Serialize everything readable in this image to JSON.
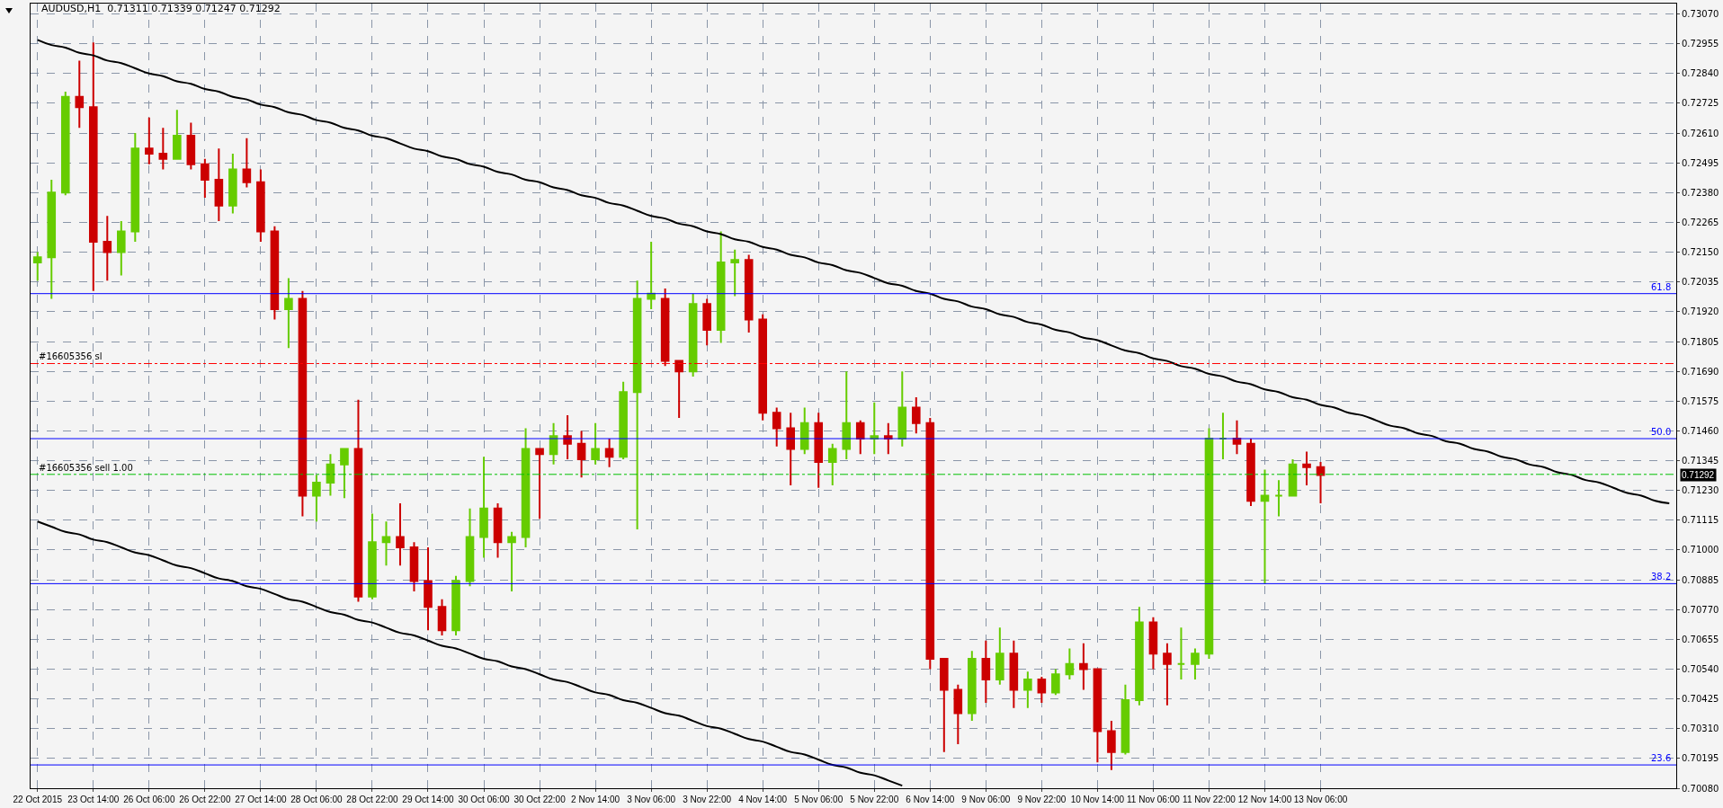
{
  "chart_data": {
    "type": "candlestick",
    "title": "AUDUSD,H1  0.71311 0.71339 0.71247 0.71292",
    "categories": [
      "22 Oct 2015",
      null,
      null,
      null,
      "23 Oct 14:00",
      null,
      null,
      null,
      "26 Oct 06:00",
      null,
      null,
      null,
      "26 Oct 22:00",
      null,
      null,
      null,
      "27 Oct 14:00",
      null,
      null,
      null,
      "28 Oct 06:00",
      null,
      null,
      null,
      "28 Oct 22:00",
      null,
      null,
      null,
      "29 Oct 14:00",
      null,
      null,
      null,
      "30 Oct 06:00",
      null,
      null,
      null,
      "30 Oct 22:00",
      null,
      null,
      null,
      "2 Nov 14:00",
      null,
      null,
      null,
      "3 Nov 06:00",
      null,
      null,
      null,
      "3 Nov 22:00",
      null,
      null,
      null,
      "4 Nov 14:00",
      null,
      null,
      null,
      "5 Nov 06:00",
      null,
      null,
      null,
      "5 Nov 22:00",
      null,
      null,
      null,
      "6 Nov 14:00",
      null,
      null,
      null,
      "9 Nov 06:00",
      null,
      null,
      null,
      "9 Nov 22:00",
      null,
      null,
      null,
      "10 Nov 14:00",
      null,
      null,
      null,
      "11 Nov 06:00",
      null,
      null,
      null,
      "11 Nov 22:00",
      null,
      null,
      null,
      "12 Nov 14:00",
      null,
      null,
      null,
      "13 Nov 06:00",
      null,
      null,
      null,
      null,
      null,
      null,
      null,
      null,
      null,
      null,
      null,
      null,
      null,
      null,
      null,
      null,
      null,
      null,
      null,
      null,
      null,
      null,
      null,
      null,
      null
    ],
    "ohlc": [
      [
        0.7211,
        0.7215,
        0.7204,
        0.7213
      ],
      [
        0.7213,
        0.7243,
        0.7197,
        0.7238
      ],
      [
        0.7238,
        0.7277,
        0.7237,
        0.7275
      ],
      [
        0.7275,
        0.7289,
        0.7263,
        0.7271
      ],
      [
        0.7271,
        0.7296,
        0.72,
        0.7219
      ],
      [
        0.7219,
        0.7229,
        0.7204,
        0.7215
      ],
      [
        0.7215,
        0.7227,
        0.7206,
        0.7223
      ],
      [
        0.7223,
        0.7261,
        0.7219,
        0.7255
      ],
      [
        0.7255,
        0.7267,
        0.7249,
        0.7253
      ],
      [
        0.7253,
        0.7263,
        0.7247,
        0.7251
      ],
      [
        0.7251,
        0.727,
        0.7251,
        0.726
      ],
      [
        0.726,
        0.7265,
        0.7247,
        0.7249
      ],
      [
        0.7249,
        0.7251,
        0.7236,
        0.7243
      ],
      [
        0.7243,
        0.7255,
        0.7227,
        0.7233
      ],
      [
        0.7233,
        0.7253,
        0.723,
        0.7247
      ],
      [
        0.7247,
        0.7259,
        0.724,
        0.7242
      ],
      [
        0.7242,
        0.7247,
        0.7219,
        0.7223
      ],
      [
        0.7223,
        0.7225,
        0.7189,
        0.7193
      ],
      [
        0.7193,
        0.7205,
        0.7178,
        0.7197
      ],
      [
        0.7197,
        0.72,
        0.7113,
        0.7121
      ],
      [
        0.7121,
        0.7129,
        0.7111,
        0.7126
      ],
      [
        0.7126,
        0.7137,
        0.7121,
        0.7133
      ],
      [
        0.7133,
        0.7139,
        0.712,
        0.7139
      ],
      [
        0.7139,
        0.7158,
        0.708,
        0.7082
      ],
      [
        0.7082,
        0.7114,
        0.7081,
        0.7103
      ],
      [
        0.7103,
        0.7111,
        0.7094,
        0.7105
      ],
      [
        0.7105,
        0.7118,
        0.7094,
        0.7101
      ],
      [
        0.7101,
        0.7103,
        0.7084,
        0.7088
      ],
      [
        0.7088,
        0.7101,
        0.7069,
        0.7078
      ],
      [
        0.7078,
        0.7081,
        0.7067,
        0.7069
      ],
      [
        0.7069,
        0.709,
        0.7067,
        0.7088
      ],
      [
        0.7088,
        0.7116,
        0.7086,
        0.7105
      ],
      [
        0.7105,
        0.7136,
        0.7097,
        0.7116
      ],
      [
        0.7116,
        0.7118,
        0.7097,
        0.7103
      ],
      [
        0.7103,
        0.7107,
        0.7084,
        0.7105
      ],
      [
        0.7105,
        0.7147,
        0.7101,
        0.7139
      ],
      [
        0.7139,
        0.7139,
        0.7112,
        0.7137
      ],
      [
        0.7137,
        0.7149,
        0.7133,
        0.7144
      ],
      [
        0.7144,
        0.7152,
        0.7135,
        0.7141
      ],
      [
        0.7141,
        0.7146,
        0.7128,
        0.7135
      ],
      [
        0.7135,
        0.7149,
        0.7133,
        0.7139
      ],
      [
        0.7139,
        0.7143,
        0.7132,
        0.7136
      ],
      [
        0.7136,
        0.7165,
        0.7135,
        0.7161
      ],
      [
        0.7161,
        0.7204,
        0.7108,
        0.7197
      ],
      [
        0.7197,
        0.7219,
        0.7193,
        0.7199
      ],
      [
        0.7197,
        0.7201,
        0.7171,
        0.7173
      ],
      [
        0.7173,
        0.7173,
        0.7151,
        0.7169
      ],
      [
        0.7169,
        0.7199,
        0.7167,
        0.7195
      ],
      [
        0.7195,
        0.7197,
        0.7179,
        0.7185
      ],
      [
        0.7185,
        0.7223,
        0.718,
        0.7211
      ],
      [
        0.7211,
        0.7216,
        0.7198,
        0.7212
      ],
      [
        0.7212,
        0.7214,
        0.7184,
        0.7189
      ],
      [
        0.7189,
        0.7191,
        0.715,
        0.7153
      ],
      [
        0.7153,
        0.7155,
        0.714,
        0.7147
      ],
      [
        0.7147,
        0.7153,
        0.7125,
        0.7139
      ],
      [
        0.7139,
        0.7155,
        0.7137,
        0.7149
      ],
      [
        0.7149,
        0.7153,
        0.7124,
        0.7134
      ],
      [
        0.7134,
        0.7141,
        0.7125,
        0.7139
      ],
      [
        0.7139,
        0.7169,
        0.7135,
        0.7149
      ],
      [
        0.7149,
        0.715,
        0.7137,
        0.7143
      ],
      [
        0.7143,
        0.7157,
        0.7137,
        0.7144
      ],
      [
        0.7144,
        0.7149,
        0.7137,
        0.7143
      ],
      [
        0.7143,
        0.7169,
        0.714,
        0.7155
      ],
      [
        0.7155,
        0.7159,
        0.7145,
        0.7149
      ],
      [
        0.7149,
        0.7151,
        0.7054,
        0.7058
      ],
      [
        0.7058,
        0.7058,
        0.7022,
        0.7046
      ],
      [
        0.7046,
        0.7048,
        0.7025,
        0.7037
      ],
      [
        0.7037,
        0.7061,
        0.7034,
        0.7058
      ],
      [
        0.7058,
        0.7065,
        0.7041,
        0.705
      ],
      [
        0.705,
        0.707,
        0.7048,
        0.706
      ],
      [
        0.706,
        0.7065,
        0.7039,
        0.7046
      ],
      [
        0.7046,
        0.7053,
        0.7039,
        0.705
      ],
      [
        0.705,
        0.7051,
        0.7041,
        0.7045
      ],
      [
        0.7045,
        0.7054,
        0.7044,
        0.7052
      ],
      [
        0.7052,
        0.7062,
        0.705,
        0.7056
      ],
      [
        0.7056,
        0.7064,
        0.7046,
        0.7054
      ],
      [
        0.7054,
        0.7054,
        0.7018,
        0.703
      ],
      [
        0.703,
        0.7034,
        0.7015,
        0.7022
      ],
      [
        0.7022,
        0.7048,
        0.7021,
        0.7042
      ],
      [
        0.7042,
        0.7078,
        0.704,
        0.7072
      ],
      [
        0.7072,
        0.7074,
        0.7054,
        0.706
      ],
      [
        0.706,
        0.7064,
        0.704,
        0.7056
      ],
      [
        0.7056,
        0.707,
        0.705,
        0.7056
      ],
      [
        0.7056,
        0.7062,
        0.705,
        0.706
      ],
      [
        0.706,
        0.7147,
        0.7058,
        0.7143
      ],
      [
        0.7143,
        0.7153,
        0.7135,
        0.7143
      ],
      [
        0.7143,
        0.715,
        0.7137,
        0.7141
      ],
      [
        0.7141,
        0.7143,
        0.7117,
        0.7119
      ],
      [
        0.7119,
        0.7131,
        0.7087,
        0.7121
      ],
      [
        0.7121,
        0.7127,
        0.7113,
        0.7121
      ],
      [
        0.7121,
        0.7135,
        0.7121,
        0.7133
      ],
      [
        0.7133,
        0.7138,
        0.7125,
        0.7132
      ],
      [
        0.7132,
        0.7134,
        0.7118,
        0.7129
      ],
      null,
      null,
      null,
      null,
      null,
      null,
      null,
      null,
      null,
      null,
      null,
      null,
      null,
      null,
      null,
      null,
      null,
      null,
      null,
      null,
      null,
      null,
      null,
      null,
      null
    ],
    "colors": [
      "#66cc00",
      "#66cc00",
      "#66cc00",
      "#cc0000",
      "#cc0000",
      "#cc0000",
      "#66cc00",
      "#66cc00",
      "#cc0000",
      "#cc0000",
      "#66cc00",
      "#cc0000",
      "#cc0000",
      "#cc0000",
      "#66cc00",
      "#cc0000",
      "#cc0000",
      "#cc0000",
      "#66cc00",
      "#cc0000",
      "#66cc00",
      "#66cc00",
      "#66cc00",
      "#cc0000",
      "#66cc00",
      "#66cc00",
      "#cc0000",
      "#cc0000",
      "#cc0000",
      "#cc0000",
      "#66cc00",
      "#66cc00",
      "#66cc00",
      "#cc0000",
      "#66cc00",
      "#66cc00",
      "#cc0000",
      "#66cc00",
      "#cc0000",
      "#cc0000",
      "#66cc00",
      "#cc0000",
      "#66cc00",
      "#66cc00",
      "#66cc00",
      "#cc0000",
      "#cc0000",
      "#66cc00",
      "#cc0000",
      "#66cc00",
      "#66cc00",
      "#cc0000",
      "#cc0000",
      "#cc0000",
      "#cc0000",
      "#66cc00",
      "#cc0000",
      "#66cc00",
      "#66cc00",
      "#cc0000",
      "#66cc00",
      "#cc0000",
      "#66cc00",
      "#cc0000",
      "#cc0000",
      "#cc0000",
      "#cc0000",
      "#66cc00",
      "#cc0000",
      "#66cc00",
      "#cc0000",
      "#66cc00",
      "#cc0000",
      "#66cc00",
      "#66cc00",
      "#cc0000",
      "#cc0000",
      "#cc0000",
      "#66cc00",
      "#66cc00",
      "#cc0000",
      "#cc0000",
      "#66cc00",
      "#66cc00",
      "#66cc00",
      "#66cc00",
      "#cc0000",
      "#cc0000",
      "#66cc00",
      "#66cc00",
      "#66cc00",
      "#cc0000",
      "#cc0000",
      null,
      null,
      null,
      null,
      null,
      null,
      null,
      null,
      null,
      null,
      null,
      null,
      null,
      null,
      null,
      null,
      null,
      null,
      null,
      null,
      null,
      null,
      null,
      null,
      null
    ],
    "series": [
      {
        "type": "line",
        "color": "#000000",
        "values": [
          0.7297,
          0.7295,
          0.7294,
          0.7292,
          0.7291,
          0.7289,
          0.7288,
          0.7286,
          0.7284,
          0.7283,
          0.7281,
          0.728,
          0.7278,
          0.7277,
          0.7275,
          0.7274,
          0.7272,
          0.7271,
          0.7269,
          0.7268,
          0.7266,
          0.7265,
          0.7263,
          0.7262,
          0.726,
          0.7259,
          0.7257,
          0.7255,
          0.7254,
          0.7252,
          0.7251,
          0.7249,
          0.7248,
          0.7246,
          0.7245,
          0.7243,
          0.7242,
          0.724,
          0.7239,
          0.7237,
          0.7236,
          0.7234,
          0.7233,
          0.7231,
          0.7229,
          0.7228,
          0.7226,
          0.7225,
          0.7223,
          0.7222,
          0.722,
          0.7219,
          0.7217,
          0.7216,
          0.7214,
          0.7213,
          0.7211,
          0.721,
          0.7208,
          0.7207,
          0.7205,
          0.7203,
          0.7202,
          0.72,
          0.7199,
          0.7197,
          0.7196,
          0.7194,
          0.7193,
          0.7191,
          0.719,
          0.7188,
          0.7187,
          0.7185,
          0.7184,
          0.7182,
          0.7181,
          0.7179,
          0.7177,
          0.7176,
          0.7174,
          0.7173,
          0.7171,
          0.717,
          0.7168,
          0.7167,
          0.7165,
          0.7164,
          0.7162,
          0.7161,
          0.7159,
          0.7158,
          0.7156,
          0.7155,
          0.7153,
          0.7152,
          0.715,
          0.7148,
          0.7147,
          0.7145,
          0.7144,
          0.7142,
          0.7141,
          0.7139,
          0.7138,
          0.7136,
          0.7135,
          0.7133,
          0.7132,
          0.713,
          0.7129,
          0.7127,
          0.7126,
          0.7124,
          0.7122,
          0.7121,
          0.7119,
          0.7118
        ]
      },
      {
        "type": "line",
        "color": "#000000",
        "values": [
          0.7111,
          0.7109,
          0.7107,
          0.7106,
          0.7104,
          0.7103,
          0.7101,
          0.7099,
          0.7098,
          0.7096,
          0.7094,
          0.7093,
          0.7091,
          0.7089,
          0.7088,
          0.7086,
          0.7085,
          0.7083,
          0.7081,
          0.708,
          0.7078,
          0.7076,
          0.7075,
          0.7073,
          0.7072,
          0.707,
          0.7068,
          0.7067,
          0.7065,
          0.7063,
          0.7062,
          0.706,
          0.7058,
          0.7057,
          0.7055,
          0.7054,
          0.7052,
          0.705,
          0.7049,
          0.7047,
          0.7045,
          0.7044,
          0.7042,
          0.7041,
          0.7039,
          0.7037,
          0.7036,
          0.7034,
          0.7032,
          0.7031,
          0.7029,
          0.7027,
          0.7026,
          0.7024,
          0.7022,
          0.7021,
          0.7019,
          0.7017,
          0.7016,
          0.7014,
          0.7013,
          0.7011,
          0.7009,
          null,
          null,
          null,
          null,
          null,
          null,
          null,
          null,
          null,
          null,
          null,
          null,
          null,
          null,
          null,
          null,
          null,
          null,
          null,
          null,
          null,
          null,
          null,
          null,
          null,
          null,
          null,
          null,
          null,
          null,
          null,
          null,
          null,
          null,
          null,
          null,
          null,
          null,
          null,
          null,
          null,
          null,
          null,
          null,
          null,
          null,
          null,
          null,
          null,
          null,
          null,
          null,
          null,
          null,
          null
        ]
      }
    ],
    "ylim": [
      0.7008,
      0.7311
    ],
    "yticks": [
      {
        "value": 0.7008,
        "label": "0.70080"
      },
      0.70195,
      {
        "value": 0.7031,
        "label": "0.70310"
      },
      0.70425,
      {
        "value": 0.7054,
        "label": "0.70540"
      },
      0.70655,
      {
        "value": 0.7077,
        "label": "0.70770"
      },
      0.70885,
      {
        "value": 0.71,
        "label": "0.71000"
      },
      0.71115,
      {
        "value": 0.7123,
        "label": "0.71230"
      },
      0.71345,
      {
        "value": 0.7146,
        "label": "0.71460"
      },
      0.71575,
      {
        "value": 0.7169,
        "label": "0.71690"
      },
      0.71805,
      {
        "value": 0.7192,
        "label": "0.71920"
      },
      0.72035,
      {
        "value": 0.7215,
        "label": "0.72150"
      },
      0.72265,
      {
        "value": 0.7238,
        "label": "0.72380"
      },
      0.72495,
      {
        "value": 0.7261,
        "label": "0.72610"
      },
      0.72725,
      {
        "value": 0.7284,
        "label": "0.72840"
      },
      0.72955,
      {
        "value": 0.7307,
        "label": "0.73070"
      }
    ],
    "grid": true,
    "ref_lines": [
      {
        "axis": "y",
        "value": 0.7199,
        "color": "#0000ff",
        "line_style": "solid"
      },
      {
        "axis": "y",
        "value": 0.7143,
        "color": "#0000ff",
        "line_style": "solid"
      },
      {
        "axis": "y",
        "value": 0.7087,
        "color": "#0000ff",
        "line_style": "solid"
      },
      {
        "axis": "y",
        "value": 0.7017,
        "color": "#0000ff",
        "line_style": "solid"
      },
      {
        "axis": "y",
        "value": 0.7172,
        "label": "#16605356 sl",
        "color": "#ff0000",
        "line_style": "dashed"
      },
      {
        "axis": "y",
        "value": 0.71292,
        "label": "#16605356 sell 1.00",
        "color": "#00c000",
        "line_style": "dashed"
      }
    ],
    "annotations": [
      "0.71292",
      {
        "text": "61.8",
        "y": 0.7199
      },
      {
        "text": "50.0",
        "y": 0.7143
      },
      {
        "text": "38.2",
        "y": 0.7087
      },
      {
        "text": "23.6",
        "y": 0.7017
      }
    ]
  }
}
